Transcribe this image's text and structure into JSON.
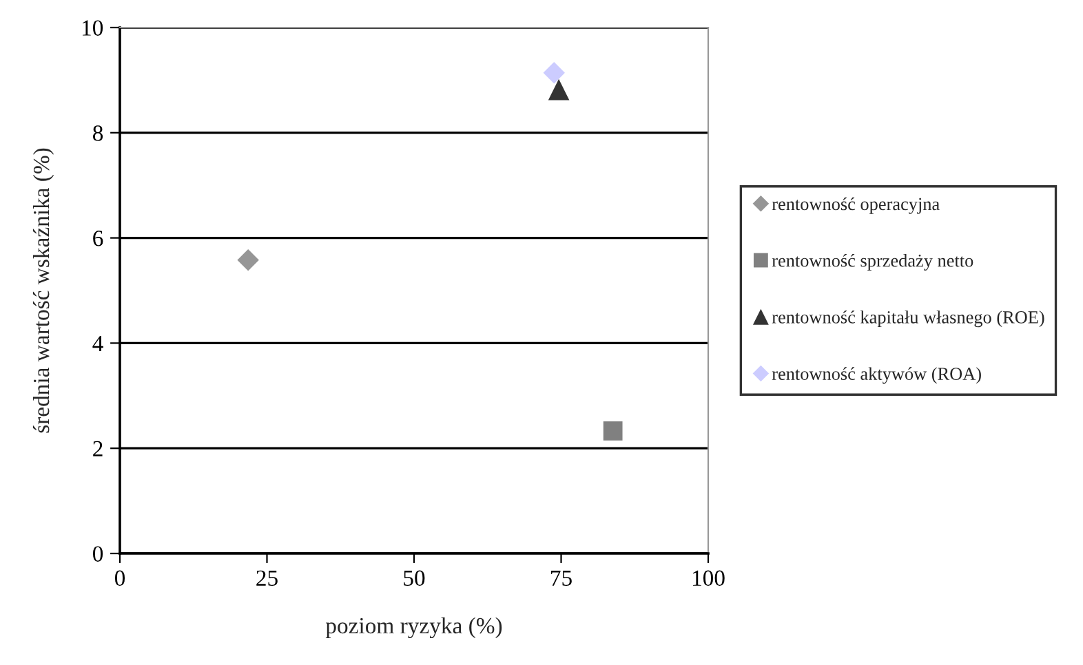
{
  "chart_data": {
    "type": "scatter",
    "xlabel": "poziom ryzyka (%)",
    "ylabel": "średnia wartość wskaźnika (%)",
    "xlim": [
      0,
      100
    ],
    "xticks": [
      0,
      25,
      50,
      75,
      100
    ],
    "ylim": [
      0,
      10
    ],
    "yticks": [
      0,
      2,
      4,
      6,
      8,
      10
    ],
    "grid": "y",
    "legend": "right",
    "series": [
      {
        "name": "rentowność operacyjna",
        "color": "#969696",
        "marker": "diamond",
        "x": [
          21.8
        ],
        "values": [
          5.58
        ]
      },
      {
        "name": "rentowność sprzedaży netto",
        "color": "#808080",
        "marker": "square",
        "x": [
          83.8
        ],
        "values": [
          2.33
        ]
      },
      {
        "name": "rentowność kapitału własnego (ROE)",
        "color": "#333333",
        "marker": "triangle",
        "x": [
          74.6
        ],
        "values": [
          8.82
        ]
      },
      {
        "name": "rentowność aktywów (ROA)",
        "color": "#ccccff",
        "marker": "diamond",
        "x": [
          73.8
        ],
        "values": [
          9.14
        ]
      }
    ]
  }
}
